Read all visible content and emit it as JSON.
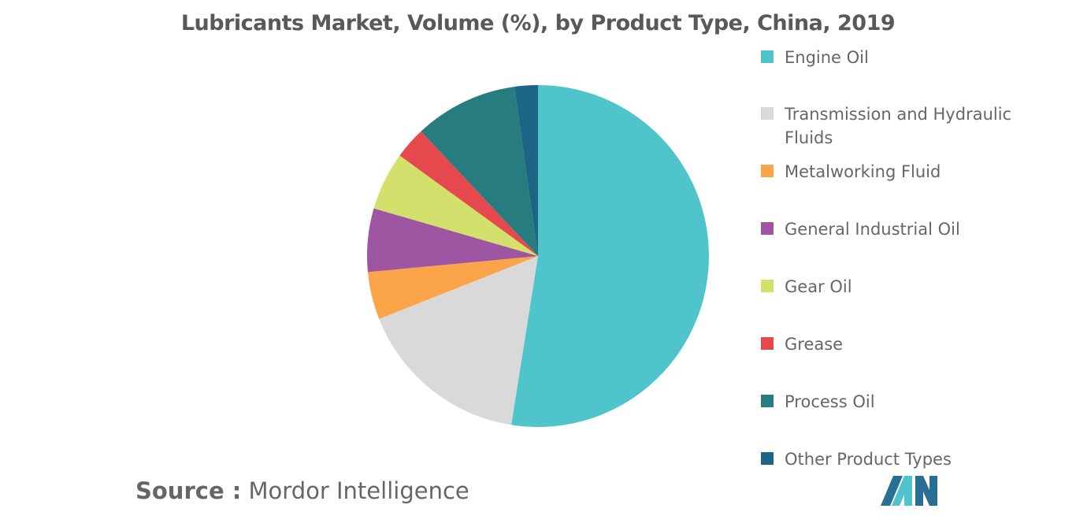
{
  "chart_data": {
    "type": "pie",
    "title": "Lubricants Market, Volume (%), by Product Type, China, 2019",
    "legend_position": "right",
    "slices": [
      {
        "label": "Engine Oil",
        "value": 52.5,
        "color": "#4fc4cb"
      },
      {
        "label": "Transmission and Hydraulic Fluids",
        "value": 16.5,
        "color": "#d9d9d9"
      },
      {
        "label": "Metalworking Fluid",
        "value": 4.5,
        "color": "#fca449"
      },
      {
        "label": "General Industrial Oil",
        "value": 6.0,
        "color": "#9e55a2"
      },
      {
        "label": "Gear Oil",
        "value": 5.5,
        "color": "#d3e06b"
      },
      {
        "label": "Grease",
        "value": 3.0,
        "color": "#e5484d"
      },
      {
        "label": "Process Oil",
        "value": 9.8,
        "color": "#267c7e"
      },
      {
        "label": "Other Product Types",
        "value": 2.2,
        "color": "#1d6584"
      }
    ]
  },
  "source": {
    "prefix": "Source :",
    "name": "Mordor Intelligence"
  },
  "logo": {
    "icon": "mordor-intelligence-logo-icon",
    "colors": [
      "#2b6e94",
      "#4fc4cb"
    ]
  }
}
